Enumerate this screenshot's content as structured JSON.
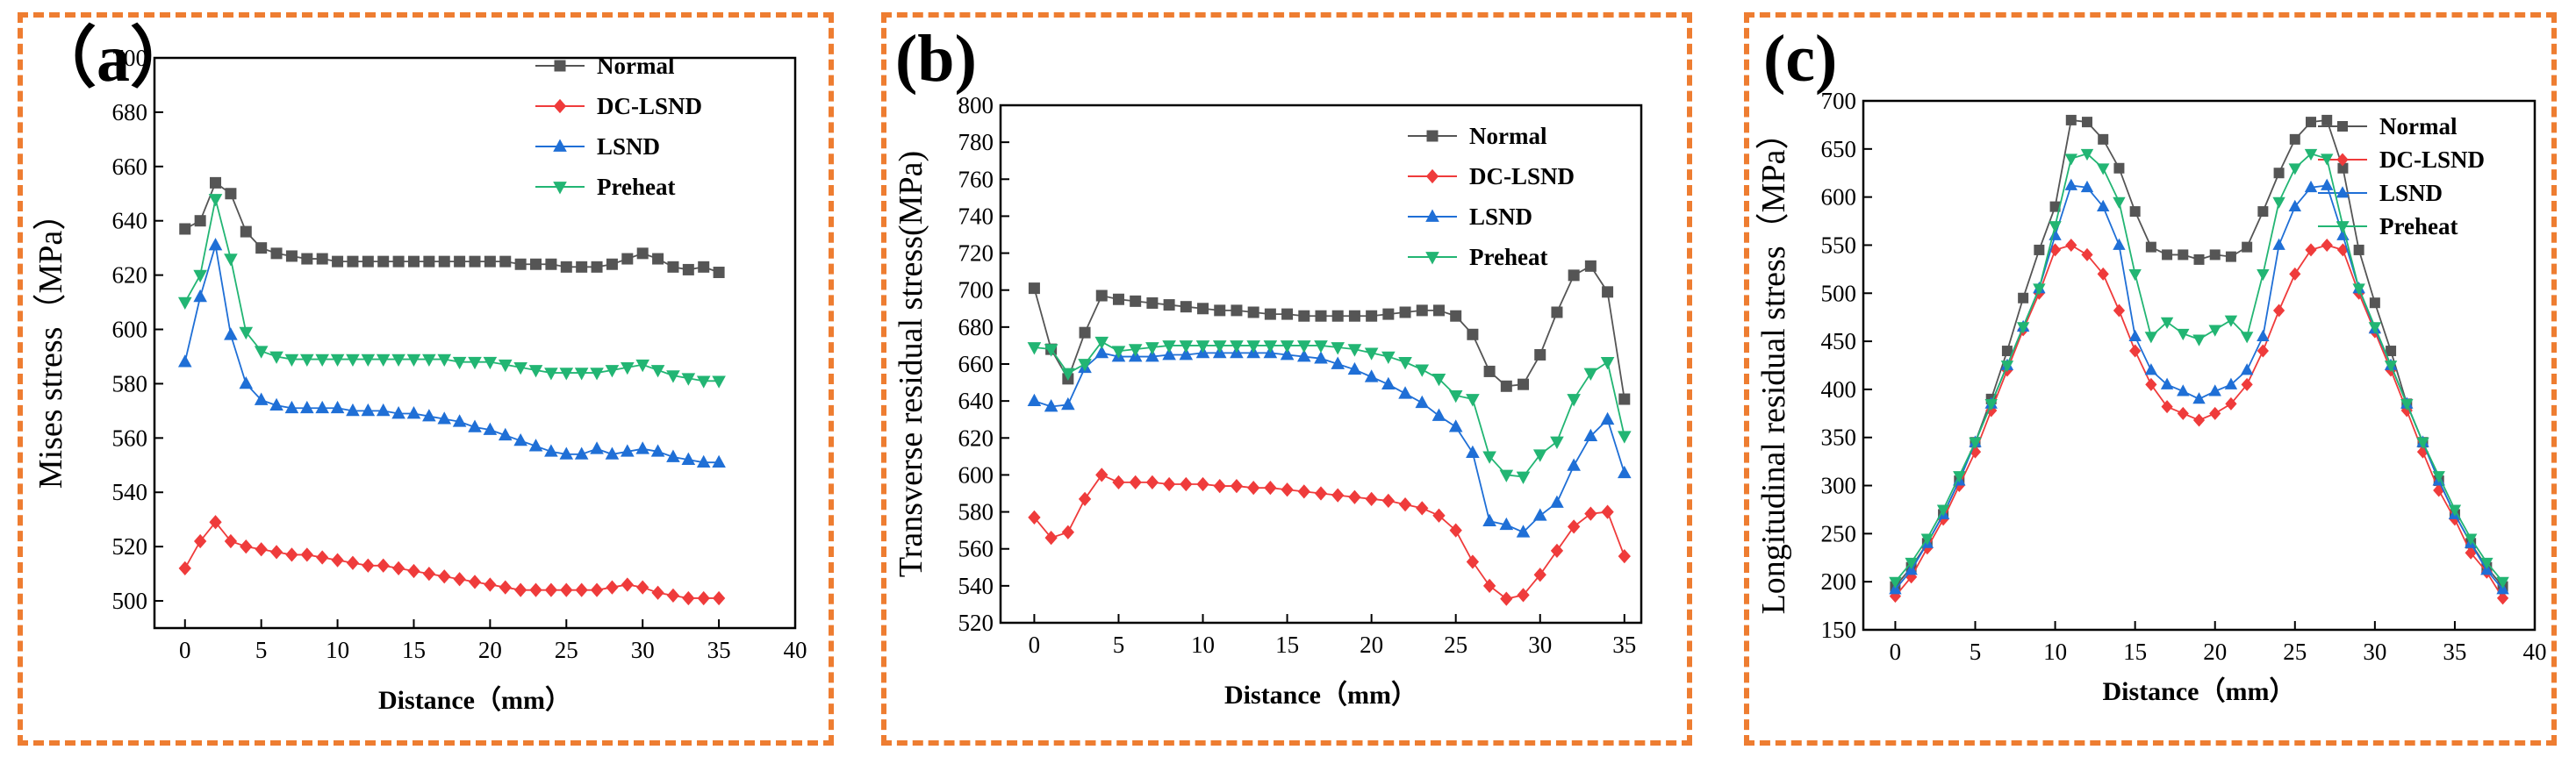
{
  "colors": {
    "normal": "#555555",
    "dclsnd": "#ef3b3b",
    "lsnd": "#1f6fd6",
    "preheat": "#22b573",
    "frame": "#ee7d31"
  },
  "chart_data": [
    {
      "panel_label": "（a）",
      "type": "line",
      "xlabel": "Distance（mm）",
      "ylabel": "Mises stress（MPa）",
      "xlim": [
        -2,
        40
      ],
      "ylim": [
        490,
        700
      ],
      "xticks": [
        0,
        5,
        10,
        15,
        20,
        25,
        30,
        35,
        40
      ],
      "yticks": [
        500,
        520,
        540,
        560,
        580,
        600,
        620,
        640,
        660,
        680,
        700
      ],
      "legend_position": "top-right",
      "series": [
        {
          "name": "Normal",
          "color": "#555555",
          "marker": "square",
          "x": [
            0,
            1,
            2,
            3,
            4,
            5,
            6,
            7,
            8,
            9,
            10,
            11,
            12,
            13,
            14,
            15,
            16,
            17,
            18,
            19,
            20,
            21,
            22,
            23,
            24,
            25,
            26,
            27,
            28,
            29,
            30,
            31,
            32,
            33,
            34,
            35
          ],
          "y": [
            637,
            640,
            654,
            650,
            636,
            630,
            628,
            627,
            626,
            626,
            625,
            625,
            625,
            625,
            625,
            625,
            625,
            625,
            625,
            625,
            625,
            625,
            624,
            624,
            624,
            623,
            623,
            623,
            624,
            626,
            628,
            626,
            623,
            622,
            623,
            621
          ]
        },
        {
          "name": "DC-LSND",
          "color": "#ef3b3b",
          "marker": "diamond",
          "x": [
            0,
            1,
            2,
            3,
            4,
            5,
            6,
            7,
            8,
            9,
            10,
            11,
            12,
            13,
            14,
            15,
            16,
            17,
            18,
            19,
            20,
            21,
            22,
            23,
            24,
            25,
            26,
            27,
            28,
            29,
            30,
            31,
            32,
            33,
            34,
            35
          ],
          "y": [
            512,
            522,
            529,
            522,
            520,
            519,
            518,
            517,
            517,
            516,
            515,
            514,
            513,
            513,
            512,
            511,
            510,
            509,
            508,
            507,
            506,
            505,
            504,
            504,
            504,
            504,
            504,
            504,
            505,
            506,
            505,
            503,
            502,
            501,
            501,
            501
          ]
        },
        {
          "name": "LSND",
          "color": "#1f6fd6",
          "marker": "triangle-up",
          "x": [
            0,
            1,
            2,
            3,
            4,
            5,
            6,
            7,
            8,
            9,
            10,
            11,
            12,
            13,
            14,
            15,
            16,
            17,
            18,
            19,
            20,
            21,
            22,
            23,
            24,
            25,
            26,
            27,
            28,
            29,
            30,
            31,
            32,
            33,
            34,
            35
          ],
          "y": [
            588,
            612,
            631,
            598,
            580,
            574,
            572,
            571,
            571,
            571,
            571,
            570,
            570,
            570,
            569,
            569,
            568,
            567,
            566,
            564,
            563,
            561,
            559,
            557,
            555,
            554,
            554,
            556,
            554,
            555,
            556,
            555,
            553,
            552,
            551,
            551
          ]
        },
        {
          "name": "Preheat",
          "color": "#22b573",
          "marker": "triangle-down",
          "x": [
            0,
            1,
            2,
            3,
            4,
            5,
            6,
            7,
            8,
            9,
            10,
            11,
            12,
            13,
            14,
            15,
            16,
            17,
            18,
            19,
            20,
            21,
            22,
            23,
            24,
            25,
            26,
            27,
            28,
            29,
            30,
            31,
            32,
            33,
            34,
            35
          ],
          "y": [
            610,
            620,
            648,
            626,
            599,
            592,
            590,
            589,
            589,
            589,
            589,
            589,
            589,
            589,
            589,
            589,
            589,
            589,
            588,
            588,
            588,
            587,
            586,
            585,
            584,
            584,
            584,
            584,
            585,
            586,
            587,
            585,
            583,
            582,
            581,
            581
          ]
        }
      ]
    },
    {
      "panel_label": "(b)",
      "type": "line",
      "xlabel": "Distance（mm）",
      "ylabel": "Transverse residual stress(MPa)",
      "xlim": [
        -2,
        36
      ],
      "ylim": [
        520,
        800
      ],
      "xticks": [
        0,
        5,
        10,
        15,
        20,
        25,
        30,
        35
      ],
      "yticks": [
        520,
        540,
        560,
        580,
        600,
        620,
        640,
        660,
        680,
        700,
        720,
        740,
        760,
        780,
        800
      ],
      "legend_position": "top-right",
      "series": [
        {
          "name": "Normal",
          "color": "#555555",
          "marker": "square",
          "x": [
            0,
            1,
            2,
            3,
            4,
            5,
            6,
            7,
            8,
            9,
            10,
            11,
            12,
            13,
            14,
            15,
            16,
            17,
            18,
            19,
            20,
            21,
            22,
            23,
            24,
            25,
            26,
            27,
            28,
            29,
            30,
            31,
            32,
            33,
            34,
            35
          ],
          "y": [
            701,
            668,
            652,
            677,
            697,
            695,
            694,
            693,
            692,
            691,
            690,
            689,
            689,
            688,
            687,
            687,
            686,
            686,
            686,
            686,
            686,
            687,
            688,
            689,
            689,
            686,
            676,
            656,
            648,
            649,
            665,
            688,
            708,
            713,
            699,
            641
          ]
        },
        {
          "name": "DC-LSND",
          "color": "#ef3b3b",
          "marker": "diamond",
          "x": [
            0,
            1,
            2,
            3,
            4,
            5,
            6,
            7,
            8,
            9,
            10,
            11,
            12,
            13,
            14,
            15,
            16,
            17,
            18,
            19,
            20,
            21,
            22,
            23,
            24,
            25,
            26,
            27,
            28,
            29,
            30,
            31,
            32,
            33,
            34,
            35
          ],
          "y": [
            577,
            566,
            569,
            587,
            600,
            596,
            596,
            596,
            595,
            595,
            595,
            594,
            594,
            593,
            593,
            592,
            591,
            590,
            589,
            588,
            587,
            586,
            584,
            582,
            578,
            570,
            553,
            540,
            533,
            535,
            546,
            559,
            572,
            579,
            580,
            556
          ]
        },
        {
          "name": "LSND",
          "color": "#1f6fd6",
          "marker": "triangle-up",
          "x": [
            0,
            1,
            2,
            3,
            4,
            5,
            6,
            7,
            8,
            9,
            10,
            11,
            12,
            13,
            14,
            15,
            16,
            17,
            18,
            19,
            20,
            21,
            22,
            23,
            24,
            25,
            26,
            27,
            28,
            29,
            30,
            31,
            32,
            33,
            34,
            35
          ],
          "y": [
            640,
            637,
            638,
            658,
            666,
            664,
            664,
            664,
            665,
            665,
            666,
            666,
            666,
            666,
            666,
            665,
            664,
            663,
            660,
            657,
            653,
            649,
            644,
            639,
            632,
            626,
            612,
            575,
            573,
            569,
            578,
            585,
            605,
            621,
            630,
            601
          ]
        },
        {
          "name": "Preheat",
          "color": "#22b573",
          "marker": "triangle-down",
          "x": [
            0,
            1,
            2,
            3,
            4,
            5,
            6,
            7,
            8,
            9,
            10,
            11,
            12,
            13,
            14,
            15,
            16,
            17,
            18,
            19,
            20,
            21,
            22,
            23,
            24,
            25,
            26,
            27,
            28,
            29,
            30,
            31,
            32,
            33,
            34,
            35
          ],
          "y": [
            669,
            668,
            655,
            660,
            672,
            667,
            668,
            669,
            670,
            670,
            670,
            670,
            670,
            670,
            670,
            670,
            670,
            670,
            669,
            668,
            666,
            664,
            661,
            657,
            652,
            643,
            641,
            610,
            600,
            599,
            611,
            618,
            641,
            655,
            661,
            621
          ]
        }
      ]
    },
    {
      "panel_label": "(c)",
      "type": "line",
      "xlabel": "Distance（mm）",
      "ylabel": "Longitudinal residual stress（MPa）",
      "xlim": [
        -2,
        40
      ],
      "ylim": [
        150,
        700
      ],
      "xticks": [
        0,
        5,
        10,
        15,
        20,
        25,
        30,
        35,
        40
      ],
      "yticks": [
        150,
        200,
        250,
        300,
        350,
        400,
        450,
        500,
        550,
        600,
        650,
        700
      ],
      "legend_position": "top-right",
      "series": [
        {
          "name": "Normal",
          "color": "#555555",
          "marker": "square",
          "x": [
            0,
            1,
            2,
            3,
            4,
            5,
            6,
            7,
            8,
            9,
            10,
            11,
            12,
            13,
            14,
            15,
            16,
            17,
            18,
            19,
            20,
            21,
            22,
            23,
            24,
            25,
            26,
            27,
            28,
            29,
            30,
            31,
            32,
            33,
            34,
            35,
            36,
            37,
            38
          ],
          "y": [
            195,
            215,
            240,
            270,
            305,
            345,
            390,
            440,
            495,
            545,
            590,
            680,
            678,
            660,
            630,
            585,
            548,
            540,
            540,
            535,
            540,
            538,
            548,
            585,
            625,
            660,
            678,
            680,
            630,
            545,
            490,
            440,
            385,
            345,
            305,
            270,
            240,
            215,
            195
          ]
        },
        {
          "name": "DC-LSND",
          "color": "#ef3b3b",
          "marker": "diamond",
          "x": [
            0,
            1,
            2,
            3,
            4,
            5,
            6,
            7,
            8,
            9,
            10,
            11,
            12,
            13,
            14,
            15,
            16,
            17,
            18,
            19,
            20,
            21,
            22,
            23,
            24,
            25,
            26,
            27,
            28,
            29,
            30,
            31,
            32,
            33,
            34,
            35,
            36,
            37,
            38
          ],
          "y": [
            185,
            205,
            235,
            265,
            300,
            335,
            378,
            420,
            462,
            500,
            545,
            550,
            540,
            520,
            482,
            440,
            405,
            382,
            375,
            368,
            375,
            385,
            405,
            440,
            482,
            520,
            545,
            550,
            545,
            500,
            460,
            420,
            378,
            335,
            295,
            265,
            230,
            210,
            183
          ]
        },
        {
          "name": "LSND",
          "color": "#1f6fd6",
          "marker": "triangle-up",
          "x": [
            0,
            1,
            2,
            3,
            4,
            5,
            6,
            7,
            8,
            9,
            10,
            11,
            12,
            13,
            14,
            15,
            16,
            17,
            18,
            19,
            20,
            21,
            22,
            23,
            24,
            25,
            26,
            27,
            28,
            29,
            30,
            31,
            32,
            33,
            34,
            35,
            36,
            37,
            38
          ],
          "y": [
            192,
            212,
            240,
            270,
            305,
            345,
            385,
            425,
            465,
            505,
            560,
            612,
            610,
            590,
            550,
            455,
            420,
            405,
            398,
            390,
            398,
            405,
            420,
            455,
            550,
            590,
            610,
            612,
            560,
            505,
            463,
            425,
            385,
            345,
            305,
            270,
            240,
            212,
            192
          ]
        },
        {
          "name": "Preheat",
          "color": "#22b573",
          "marker": "triangle-down",
          "x": [
            0,
            1,
            2,
            3,
            4,
            5,
            6,
            7,
            8,
            9,
            10,
            11,
            12,
            13,
            14,
            15,
            16,
            17,
            18,
            19,
            20,
            21,
            22,
            23,
            24,
            25,
            26,
            27,
            28,
            29,
            30,
            31,
            32,
            33,
            34,
            35,
            36,
            37,
            38
          ],
          "y": [
            200,
            220,
            245,
            275,
            310,
            345,
            385,
            425,
            465,
            505,
            570,
            640,
            645,
            630,
            595,
            520,
            455,
            470,
            458,
            452,
            462,
            472,
            455,
            520,
            595,
            630,
            645,
            640,
            570,
            505,
            465,
            425,
            385,
            345,
            310,
            275,
            245,
            220,
            200
          ]
        }
      ]
    }
  ]
}
